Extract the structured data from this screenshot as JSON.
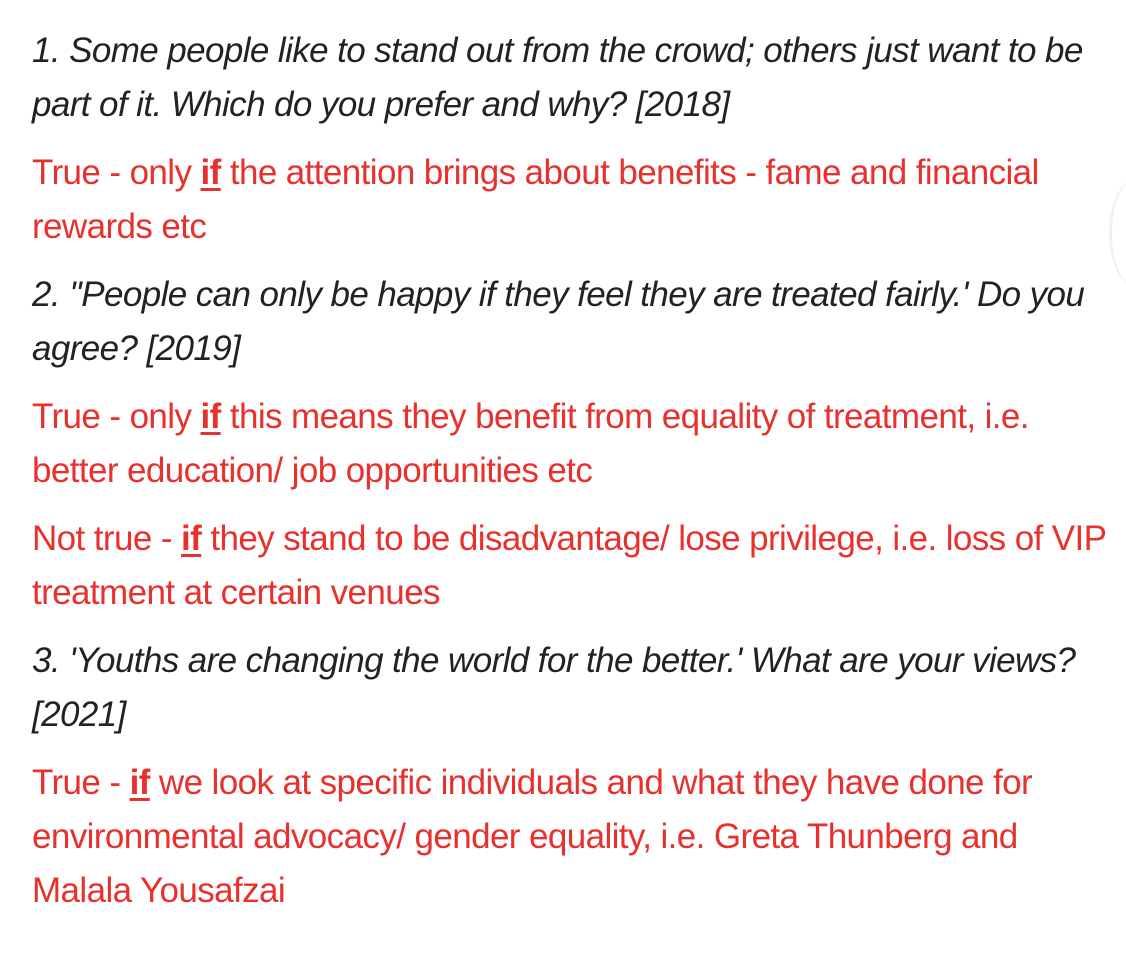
{
  "colors": {
    "question_text": "#222222",
    "answer_text": "#e8302d",
    "background": "#ffffff"
  },
  "blocks": [
    {
      "type": "question",
      "text": "1. Some people like to stand out from the crowd; others just want to be part of it. Which do you prefer and why? [2018]"
    },
    {
      "type": "answer",
      "before": "True - only ",
      "keyword": "if",
      "after": " the attention brings about benefits - fame and financial rewards etc"
    },
    {
      "type": "question",
      "text": "2. ''People can only be happy if they feel they are treated fairly.' Do you agree? [2019]"
    },
    {
      "type": "answer",
      "before": "True - only ",
      "keyword": "if",
      "after": " this means they benefit from equality of treatment, i.e. better education/ job opportunities etc"
    },
    {
      "type": "answer",
      "before": "Not true - ",
      "keyword": "if",
      "after": " they stand to be disadvantage/ lose privilege, i.e. loss of VIP treatment at certain venues"
    },
    {
      "type": "question",
      "text": "3. 'Youths are changing the world for the better.' What are your views? [2021]"
    },
    {
      "type": "answer",
      "before": "True - ",
      "keyword": "if",
      "after": " we look at specific individuals and what they have done for environmental advocacy/ gender equality, i.e. Greta Thunberg and Malala Yousafzai"
    }
  ]
}
